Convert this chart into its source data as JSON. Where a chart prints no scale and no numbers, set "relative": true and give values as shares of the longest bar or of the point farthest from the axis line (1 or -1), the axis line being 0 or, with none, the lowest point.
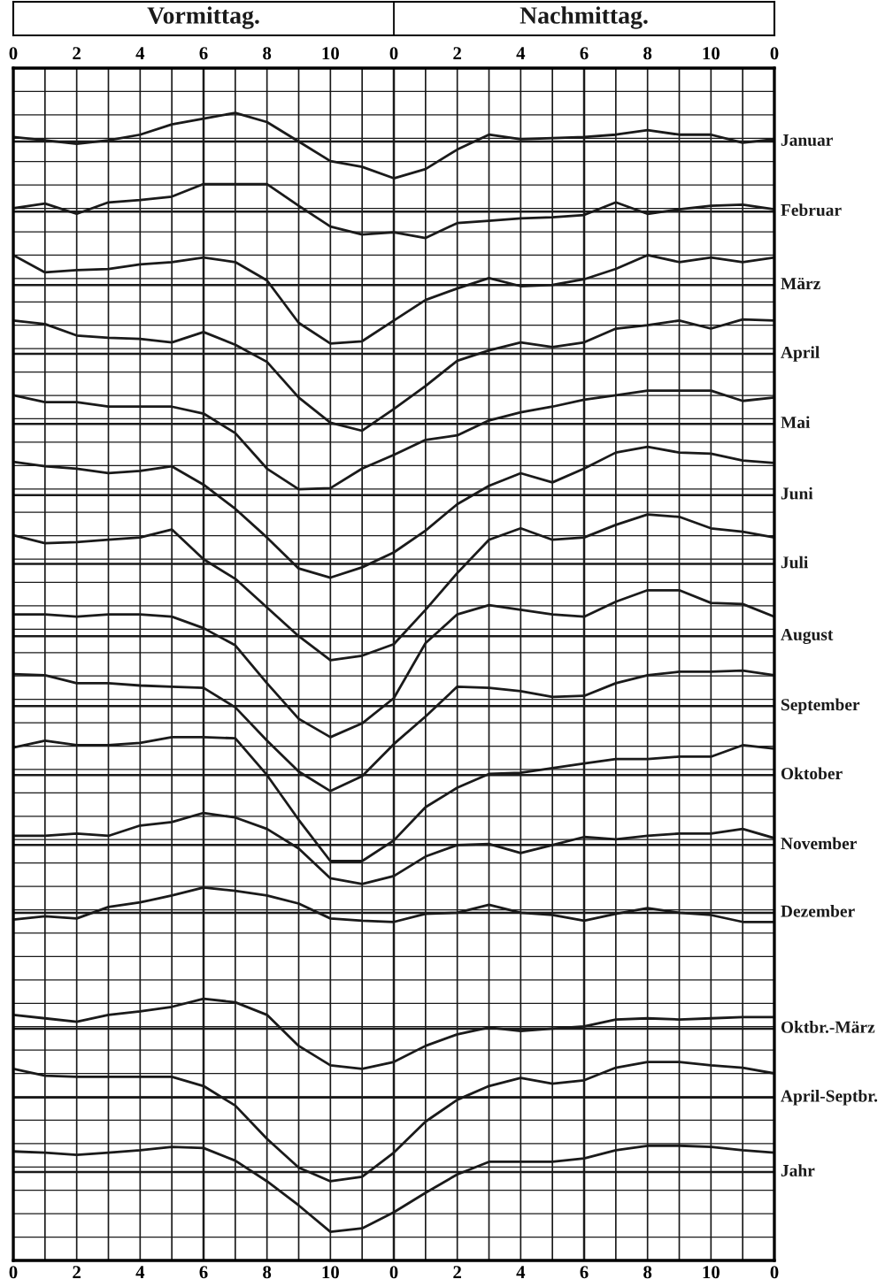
{
  "chart_data": {
    "type": "line",
    "relative": true,
    "grid": true,
    "tick_labels": "x",
    "annotations": [
      "Vormittag.",
      "Nachmittag."
    ],
    "categories": [
      "0",
      null,
      "2",
      null,
      "4",
      null,
      "6",
      null,
      "8",
      null,
      "10",
      null,
      "0",
      null,
      "2",
      null,
      "4",
      null,
      "6",
      null,
      "8",
      null,
      "10",
      null,
      "0"
    ],
    "ref_lines": [
      {
        "axis": "y",
        "value": 0.975,
        "color": "#1a1a1a"
      },
      {
        "axis": "y",
        "value": 0.914,
        "color": "#1a1a1a"
      },
      {
        "axis": "y",
        "value": 0.85,
        "color": "#1a1a1a"
      },
      {
        "axis": "y",
        "value": 0.79,
        "color": "#1a1a1a"
      },
      {
        "axis": "y",
        "value": 0.729,
        "color": "#1a1a1a"
      },
      {
        "axis": "y",
        "value": 0.667,
        "color": "#1a1a1a"
      },
      {
        "axis": "y",
        "value": 0.607,
        "color": "#1a1a1a"
      },
      {
        "axis": "y",
        "value": 0.544,
        "color": "#1a1a1a"
      },
      {
        "axis": "y",
        "value": 0.483,
        "color": "#1a1a1a"
      },
      {
        "axis": "y",
        "value": 0.423,
        "color": "#1a1a1a"
      },
      {
        "axis": "y",
        "value": 0.362,
        "color": "#1a1a1a"
      },
      {
        "axis": "y",
        "value": 0.303,
        "color": "#1a1a1a"
      },
      {
        "axis": "y",
        "value": 0.202,
        "color": "#1a1a1a"
      },
      {
        "axis": "y",
        "value": 0.142,
        "color": "#1a1a1a"
      },
      {
        "axis": "y",
        "value": 0.077,
        "color": "#1a1a1a"
      }
    ],
    "series": [
      {
        "name": "Januar",
        "color": "#1a1a1a",
        "values": [
          0.979,
          0.976,
          0.973,
          0.976,
          0.981,
          0.99,
          0.995,
          1.0,
          0.992,
          0.975,
          0.958,
          0.953,
          0.943,
          0.951,
          0.968,
          0.981,
          0.977,
          0.978,
          0.979,
          0.981,
          0.985,
          0.981,
          0.981,
          0.974,
          0.977
        ]
      },
      {
        "name": "Februar",
        "color": "#1a1a1a",
        "values": [
          0.917,
          0.921,
          0.912,
          0.922,
          0.924,
          0.927,
          0.938,
          0.938,
          0.938,
          0.919,
          0.901,
          0.894,
          0.896,
          0.891,
          0.904,
          0.906,
          0.908,
          0.909,
          0.911,
          0.922,
          0.912,
          0.916,
          0.919,
          0.92,
          0.916
        ]
      },
      {
        "name": "März",
        "color": "#1a1a1a",
        "values": [
          0.876,
          0.861,
          0.863,
          0.864,
          0.868,
          0.87,
          0.874,
          0.87,
          0.854,
          0.817,
          0.799,
          0.801,
          0.819,
          0.837,
          0.847,
          0.856,
          0.849,
          0.85,
          0.855,
          0.864,
          0.876,
          0.87,
          0.874,
          0.87,
          0.874
        ]
      },
      {
        "name": "April",
        "color": "#1a1a1a",
        "values": [
          0.819,
          0.816,
          0.806,
          0.804,
          0.803,
          0.8,
          0.809,
          0.798,
          0.783,
          0.752,
          0.73,
          0.723,
          0.742,
          0.762,
          0.784,
          0.793,
          0.8,
          0.796,
          0.8,
          0.812,
          0.815,
          0.819,
          0.812,
          0.82,
          0.819
        ]
      },
      {
        "name": "Mai",
        "color": "#1a1a1a",
        "values": [
          0.754,
          0.748,
          0.748,
          0.744,
          0.744,
          0.744,
          0.738,
          0.721,
          0.69,
          0.672,
          0.673,
          0.69,
          0.702,
          0.715,
          0.719,
          0.732,
          0.739,
          0.744,
          0.75,
          0.754,
          0.758,
          0.758,
          0.758,
          0.749,
          0.752
        ]
      },
      {
        "name": "Juni",
        "color": "#1a1a1a",
        "values": [
          0.696,
          0.692,
          0.69,
          0.686,
          0.688,
          0.692,
          0.676,
          0.655,
          0.63,
          0.603,
          0.595,
          0.604,
          0.617,
          0.636,
          0.659,
          0.675,
          0.686,
          0.678,
          0.69,
          0.704,
          0.709,
          0.704,
          0.703,
          0.697,
          0.695
        ]
      },
      {
        "name": "Juli",
        "color": "#1a1a1a",
        "values": [
          0.632,
          0.625,
          0.626,
          0.628,
          0.63,
          0.637,
          0.611,
          0.594,
          0.569,
          0.544,
          0.523,
          0.527,
          0.537,
          0.567,
          0.599,
          0.628,
          0.638,
          0.628,
          0.63,
          0.641,
          0.65,
          0.648,
          0.638,
          0.635,
          0.63
        ]
      },
      {
        "name": "August",
        "color": "#1a1a1a",
        "values": [
          0.563,
          0.563,
          0.561,
          0.563,
          0.563,
          0.561,
          0.551,
          0.536,
          0.503,
          0.472,
          0.456,
          0.468,
          0.49,
          0.538,
          0.563,
          0.571,
          0.567,
          0.563,
          0.561,
          0.574,
          0.584,
          0.584,
          0.573,
          0.572,
          0.561
        ]
      },
      {
        "name": "September",
        "color": "#1a1a1a",
        "values": [
          0.511,
          0.51,
          0.503,
          0.503,
          0.501,
          0.5,
          0.499,
          0.482,
          0.453,
          0.426,
          0.409,
          0.422,
          0.45,
          0.474,
          0.5,
          0.499,
          0.496,
          0.491,
          0.492,
          0.503,
          0.51,
          0.513,
          0.513,
          0.514,
          0.51
        ]
      },
      {
        "name": "Oktober",
        "color": "#1a1a1a",
        "values": [
          0.447,
          0.453,
          0.449,
          0.449,
          0.451,
          0.456,
          0.456,
          0.455,
          0.423,
          0.384,
          0.348,
          0.348,
          0.366,
          0.395,
          0.412,
          0.424,
          0.425,
          0.429,
          0.433,
          0.437,
          0.437,
          0.439,
          0.439,
          0.449,
          0.446
        ]
      },
      {
        "name": "November",
        "color": "#1a1a1a",
        "values": [
          0.37,
          0.37,
          0.372,
          0.37,
          0.379,
          0.382,
          0.39,
          0.386,
          0.376,
          0.359,
          0.333,
          0.328,
          0.335,
          0.352,
          0.362,
          0.363,
          0.355,
          0.362,
          0.369,
          0.367,
          0.37,
          0.372,
          0.372,
          0.376,
          0.368
        ]
      },
      {
        "name": "Dezember",
        "color": "#1a1a1a",
        "values": [
          0.297,
          0.3,
          0.298,
          0.308,
          0.312,
          0.318,
          0.325,
          0.322,
          0.318,
          0.311,
          0.298,
          0.296,
          0.295,
          0.302,
          0.303,
          0.31,
          0.303,
          0.301,
          0.296,
          0.302,
          0.307,
          0.303,
          0.301,
          0.295,
          0.295
        ]
      },
      {
        "name": "Oktbr.-März",
        "color": "#1a1a1a",
        "values": [
          0.214,
          0.211,
          0.208,
          0.214,
          0.217,
          0.221,
          0.228,
          0.225,
          0.214,
          0.187,
          0.17,
          0.167,
          0.173,
          0.187,
          0.197,
          0.203,
          0.2,
          0.202,
          0.204,
          0.21,
          0.211,
          0.21,
          0.211,
          0.212,
          0.212
        ]
      },
      {
        "name": "April-Septbr.",
        "color": "#1a1a1a",
        "values": [
          0.167,
          0.161,
          0.16,
          0.16,
          0.16,
          0.16,
          0.152,
          0.135,
          0.106,
          0.081,
          0.069,
          0.073,
          0.094,
          0.121,
          0.14,
          0.152,
          0.159,
          0.154,
          0.157,
          0.168,
          0.173,
          0.173,
          0.17,
          0.168,
          0.163
        ]
      },
      {
        "name": "Jahr",
        "color": "#1a1a1a",
        "values": [
          0.095,
          0.094,
          0.092,
          0.094,
          0.096,
          0.099,
          0.098,
          0.087,
          0.069,
          0.048,
          0.025,
          0.028,
          0.042,
          0.059,
          0.075,
          0.086,
          0.086,
          0.086,
          0.089,
          0.096,
          0.1,
          0.1,
          0.099,
          0.096,
          0.094
        ]
      }
    ]
  }
}
